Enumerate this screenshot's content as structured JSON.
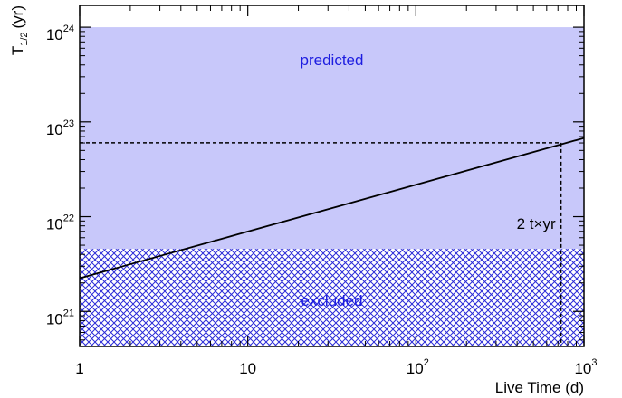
{
  "chart_data": {
    "type": "line",
    "xlabel": "Live Time (d)",
    "ylabel_main": "T",
    "ylabel_sub": "1/2",
    "ylabel_unit": "(yr)",
    "x_scale": "log",
    "y_scale": "log",
    "xlim": [
      1,
      1000
    ],
    "ylim_log10": [
      20.63,
      24.23
    ],
    "x_ticks": [
      {
        "value": 1,
        "label": "1",
        "exp": ""
      },
      {
        "value": 10,
        "label": "10",
        "exp": ""
      },
      {
        "value": 100,
        "label": "10",
        "exp": "2"
      },
      {
        "value": 1000,
        "label": "10",
        "exp": "3"
      }
    ],
    "y_ticks": [
      {
        "log10": 21,
        "label": "10",
        "exp": "21"
      },
      {
        "log10": 22,
        "label": "10",
        "exp": "22"
      },
      {
        "log10": 23,
        "label": "10",
        "exp": "23"
      },
      {
        "log10": 24,
        "label": "10",
        "exp": "24"
      }
    ],
    "series": [
      {
        "x": [
          1,
          1000
        ],
        "y_log10": [
          21.35,
          22.83
        ]
      }
    ],
    "regions": [
      {
        "label": "predicted",
        "y_log10_range": [
          21.66,
          24.0
        ],
        "fill": "#c8c8fa",
        "pattern": "solid"
      },
      {
        "label": "excluded",
        "y_log10_range": [
          20.63,
          21.66
        ],
        "fill": "#2c2cd8",
        "pattern": "crosshatch"
      }
    ],
    "reference_lines": [
      {
        "orientation": "horizontal",
        "y_log10": 22.78,
        "x_range": [
          1,
          730
        ],
        "style": "dashed"
      },
      {
        "orientation": "vertical",
        "x": 730,
        "y_log10_range": [
          20.63,
          22.78
        ],
        "style": "dashed"
      }
    ],
    "annotation": {
      "text": "2 t×yr",
      "x": 730
    },
    "colors": {
      "predicted_fill": "#c8c8fa",
      "hatch": "#2c2cd8",
      "text_blue": "#1d1de0",
      "line": "#000000"
    }
  }
}
